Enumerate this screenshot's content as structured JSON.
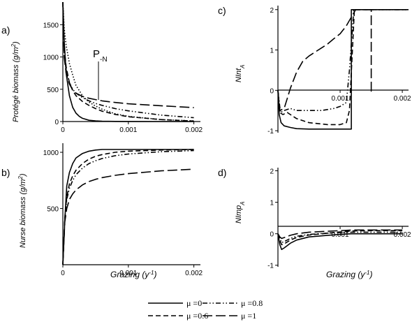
{
  "figure": {
    "x_axis_label": "Grazing (y",
    "x_axis_label_sup": "-1",
    "x_axis_label_end": ")"
  },
  "legend": {
    "entries": [
      {
        "label": "μ =0",
        "dash": "solid"
      },
      {
        "label": "μ =0.8",
        "dash": "dashdotdot"
      },
      {
        "label": "μ =0.6",
        "dash": "dashed"
      },
      {
        "label": "μ =1",
        "dash": "longdash"
      }
    ]
  },
  "chart_data": [
    {
      "panel": "a)",
      "type": "line",
      "ylabel": "Protégé biomass (g/m",
      "ylabel_sup": "2",
      "ylabel_end": ")",
      "annotation": "P",
      "annotation_sub": "-N",
      "xlim": [
        0,
        0.0021
      ],
      "ylim": [
        0,
        1850
      ],
      "xticks": [
        "0",
        "0.001",
        "0.002"
      ],
      "xtick_values": [
        0,
        0.001,
        0.002
      ],
      "yticks": [
        "0",
        "500",
        "1000",
        "1500"
      ],
      "ytick_values": [
        0,
        500,
        1000,
        1500
      ],
      "series": [
        {
          "dash": "solid",
          "x": [
            0,
            2e-05,
            5e-05,
            0.0001,
            0.00015,
            0.0002,
            0.00025,
            0.0003,
            0.0004,
            0.0005,
            0.0006,
            0.0008,
            0.001,
            0.0015,
            0.002
          ],
          "y": [
            1850,
            1250,
            750,
            400,
            220,
            130,
            80,
            50,
            20,
            10,
            5,
            2,
            1,
            0,
            0
          ]
        },
        {
          "dash": "dotted",
          "x": [
            0,
            2e-05,
            5e-05,
            0.0001,
            0.00015,
            0.0002,
            0.0003,
            0.0004,
            0.0005,
            0.0006,
            0.0008,
            0.001,
            0.0015,
            0.002
          ],
          "y": [
            1850,
            1450,
            1180,
            900,
            720,
            560,
            400,
            300,
            240,
            190,
            120,
            80,
            30,
            10
          ]
        },
        {
          "dash": "dashed",
          "x": [
            0,
            2e-05,
            5e-05,
            0.0001,
            0.00015,
            0.0002,
            0.0003,
            0.0004,
            0.0005,
            0.0006,
            0.0008,
            0.001,
            0.0015,
            0.002
          ],
          "y": [
            1850,
            1150,
            850,
            600,
            480,
            400,
            310,
            250,
            200,
            160,
            110,
            75,
            30,
            8
          ]
        },
        {
          "dash": "dashdotdot",
          "x": [
            0,
            2e-05,
            5e-05,
            0.0001,
            0.00015,
            0.0002,
            0.0003,
            0.0004,
            0.0005,
            0.0006,
            0.0008,
            0.001,
            0.0015,
            0.002
          ],
          "y": [
            1850,
            1050,
            800,
            600,
            500,
            440,
            370,
            320,
            280,
            250,
            200,
            165,
            100,
            60
          ]
        },
        {
          "dash": "longdash",
          "x": [
            0,
            2e-05,
            5e-05,
            0.0001,
            0.00015,
            0.0002,
            0.0003,
            0.0004,
            0.0005,
            0.0006,
            0.0008,
            0.001,
            0.0015,
            0.002
          ],
          "y": [
            1850,
            1000,
            750,
            580,
            490,
            440,
            390,
            360,
            340,
            320,
            295,
            275,
            245,
            215
          ]
        }
      ]
    },
    {
      "panel": "b)",
      "type": "line",
      "ylabel": "Nurse biomass (g/m",
      "ylabel_sup": "2",
      "ylabel_end": ")",
      "xlim": [
        0,
        0.0021
      ],
      "ylim": [
        0,
        1050
      ],
      "xticks": [
        "0",
        "0.001",
        "0.002"
      ],
      "xtick_values": [
        0,
        0.001,
        0.002
      ],
      "yticks": [
        "500",
        "1000"
      ],
      "ytick_values": [
        500,
        1000
      ],
      "series": [
        {
          "dash": "solid",
          "x": [
            0,
            3e-05,
            6e-05,
            0.0001,
            0.00015,
            0.0002,
            0.0003,
            0.0004,
            0.0005,
            0.0006,
            0.0008,
            0.001,
            0.002
          ],
          "y": [
            0,
            400,
            700,
            820,
            900,
            950,
            990,
            1010,
            1020,
            1025,
            1025,
            1025,
            1025
          ]
        },
        {
          "dash": "dashdotdot",
          "x": [
            0,
            3e-05,
            6e-05,
            0.0001,
            0.00015,
            0.0002,
            0.0003,
            0.0004,
            0.0005,
            0.0006,
            0.0008,
            0.001,
            0.0015,
            0.002
          ],
          "y": [
            0,
            400,
            580,
            680,
            750,
            800,
            860,
            900,
            925,
            945,
            970,
            985,
            1005,
            1015
          ]
        },
        {
          "dash": "dashed",
          "x": [
            0,
            3e-05,
            6e-05,
            0.0001,
            0.00015,
            0.0002,
            0.0003,
            0.0004,
            0.0005,
            0.0006,
            0.0008,
            0.001,
            0.0015,
            0.002
          ],
          "y": [
            0,
            420,
            600,
            720,
            790,
            840,
            900,
            940,
            965,
            980,
            1000,
            1010,
            1020,
            1025
          ]
        },
        {
          "dash": "longdash",
          "x": [
            0,
            3e-05,
            6e-05,
            0.0001,
            0.00015,
            0.0002,
            0.0003,
            0.0004,
            0.0005,
            0.0006,
            0.0008,
            0.001,
            0.0015,
            0.002
          ],
          "y": [
            0,
            380,
            500,
            580,
            630,
            665,
            710,
            740,
            760,
            775,
            795,
            810,
            835,
            850
          ]
        }
      ]
    },
    {
      "panel": "c)",
      "type": "line",
      "ylabel": "NInt",
      "ylabel_sub": "A",
      "xlim": [
        0,
        0.0021
      ],
      "ylim": [
        -1.05,
        2.1
      ],
      "xticks": [
        "0.001",
        "0.002"
      ],
      "xtick_values": [
        0.001,
        0.002
      ],
      "yticks": [
        "-1",
        "0",
        "1",
        "2"
      ],
      "ytick_values": [
        -1,
        0,
        1,
        2
      ],
      "series": [
        {
          "dash": "solid",
          "x": [
            0,
            2e-05,
            5e-05,
            0.0001,
            0.0002,
            0.0003,
            0.0005,
            0.0008,
            0.001,
            0.00118,
            0.00118,
            0.00125,
            0.0015,
            0.0021
          ],
          "y": [
            0,
            -0.6,
            -0.8,
            -0.88,
            -0.92,
            -0.95,
            -0.96,
            -0.96,
            -0.96,
            -0.96,
            2,
            2,
            2,
            2
          ]
        },
        {
          "dash": "dashed",
          "x": [
            0,
            3e-05,
            8e-05,
            0.00015,
            0.0002,
            0.0003,
            0.0005,
            0.0008,
            0.001,
            0.0011,
            0.00115,
            0.00123,
            0.0015,
            0.0021
          ],
          "y": [
            0,
            -0.55,
            -0.6,
            -0.55,
            -0.6,
            -0.7,
            -0.8,
            -0.85,
            -0.85,
            -0.8,
            -0.5,
            2,
            2,
            2
          ]
        },
        {
          "dash": "dashdotdot",
          "x": [
            0,
            4e-05,
            0.0001,
            0.0002,
            0.0003,
            0.0005,
            0.0007,
            0.0009,
            0.001,
            0.0011,
            0.00115,
            0.00122,
            0.0015,
            0.0021
          ],
          "y": [
            0,
            -0.55,
            -0.5,
            -0.45,
            -0.5,
            -0.5,
            -0.5,
            -0.45,
            -0.4,
            -0.3,
            0.5,
            2,
            2,
            2
          ]
        },
        {
          "dash": "longdash",
          "x": [
            0,
            3e-05,
            0.0001,
            0.00015,
            0.0002,
            0.0003,
            0.0004,
            0.0005,
            0.0006,
            0.0007,
            0.0008,
            0.0009,
            0.001,
            0.0011,
            0.00125,
            0.0015,
            0.0015,
            0.00153
          ],
          "y": [
            0,
            -0.5,
            -0.45,
            -0.2,
            0.05,
            0.45,
            0.72,
            0.85,
            0.95,
            1.05,
            1.15,
            1.28,
            1.4,
            1.6,
            2,
            2,
            -0.02,
            -0.02
          ]
        }
      ]
    },
    {
      "panel": "d)",
      "type": "line",
      "ylabel": "NImp",
      "ylabel_sub": "A",
      "xlim": [
        0,
        0.0021
      ],
      "ylim": [
        -1.05,
        2.1
      ],
      "xticks": [
        "0.001",
        "0.002"
      ],
      "xtick_values": [
        0.001,
        0.002
      ],
      "yticks": [
        "-1",
        "0",
        "1",
        "2"
      ],
      "ytick_values": [
        -1,
        0,
        1,
        2
      ],
      "series": [
        {
          "dash": "solid",
          "x": [
            0,
            3e-05,
            6e-05,
            0.0001,
            0.0002,
            0.0003,
            0.0005,
            0.0008,
            0.001,
            0.00118,
            0.0015,
            0.002
          ],
          "y": [
            0,
            -0.35,
            -0.5,
            -0.45,
            -0.3,
            -0.2,
            -0.1,
            -0.05,
            -0.02,
            0,
            0,
            0
          ]
        },
        {
          "dash": "dashed",
          "x": [
            0,
            3e-05,
            6e-05,
            0.0001,
            0.0002,
            0.0003,
            0.0005,
            0.0008,
            0.001,
            0.0012,
            0.0015,
            0.002
          ],
          "y": [
            0,
            -0.2,
            -0.35,
            -0.32,
            -0.2,
            -0.12,
            -0.04,
            0.02,
            0.06,
            0.09,
            0.1,
            0.1
          ]
        },
        {
          "dash": "dashdotdot",
          "x": [
            0,
            3e-05,
            6e-05,
            0.0001,
            0.0002,
            0.0003,
            0.0005,
            0.0008,
            0.001,
            0.0012,
            0.0015,
            0.002
          ],
          "y": [
            0,
            -0.15,
            -0.28,
            -0.25,
            -0.15,
            -0.08,
            -0.02,
            0.02,
            0.04,
            0.05,
            0.05,
            0.05
          ]
        },
        {
          "dash": "longdash",
          "x": [
            0,
            3e-05,
            6e-05,
            0.0001,
            0.0002,
            0.0003,
            0.0005,
            0.0008,
            0.001,
            0.0012,
            0.0015,
            0.002
          ],
          "y": [
            0,
            -0.1,
            -0.15,
            -0.12,
            -0.05,
            0,
            0.05,
            0.08,
            0.1,
            0.12,
            0.12,
            0.12
          ]
        }
      ]
    }
  ]
}
